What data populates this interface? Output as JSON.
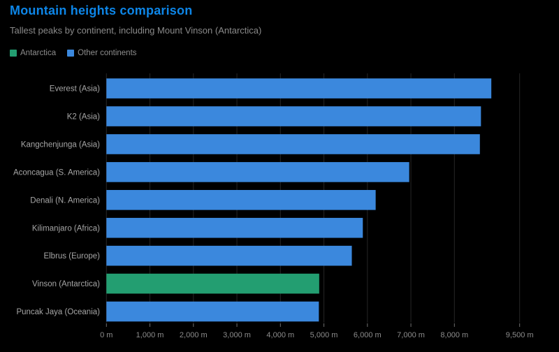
{
  "page": {
    "background": "#000000"
  },
  "header": {
    "title": "Mountain heights comparison",
    "title_color": "#0d86e8",
    "subtitle": "Tallest peaks by continent, including Mount Vinson (Antarctica)",
    "subtitle_color": "#8a8a8a"
  },
  "legend": {
    "items": [
      {
        "label": "Antarctica",
        "color": "#239e71"
      },
      {
        "label": "Other continents",
        "color": "#3b88dd"
      }
    ],
    "label_color": "#8d8d8d"
  },
  "chart_data": {
    "type": "bar",
    "orientation": "horizontal",
    "title": "Mountain heights comparison",
    "subtitle": "Tallest peaks by continent, including Mount Vinson (Antarctica)",
    "categories": [
      "Everest (Asia)",
      "K2 (Asia)",
      "Kangchenjunga (Asia)",
      "Aconcagua (S. America)",
      "Denali (N. America)",
      "Kilimanjaro (Africa)",
      "Elbrus (Europe)",
      "Vinson (Antarctica)",
      "Puncak Jaya (Oceania)"
    ],
    "series": [
      {
        "name": "Height",
        "values": [
          8849,
          8611,
          8586,
          6961,
          6190,
          5895,
          5642,
          4892,
          4884
        ]
      }
    ],
    "groups": [
      "Other continents",
      "Other continents",
      "Other continents",
      "Other continents",
      "Other continents",
      "Other continents",
      "Other continents",
      "Antarctica",
      "Other continents"
    ],
    "colors": {
      "Antarctica": "#239e71",
      "Other continents": "#3b88dd"
    },
    "unit": "m",
    "xlim": [
      0,
      9900
    ],
    "grid": true,
    "legend_position": "top",
    "x_ticks": [
      {
        "value": 0,
        "label": "0 m"
      },
      {
        "value": 1000,
        "label": "1,000 m"
      },
      {
        "value": 2000,
        "label": "2,000 m"
      },
      {
        "value": 3000,
        "label": "3,000 m"
      },
      {
        "value": 4000,
        "label": "4,000 m"
      },
      {
        "value": 5000,
        "label": "5,000 m"
      },
      {
        "value": 6000,
        "label": "6,000 m"
      },
      {
        "value": 7000,
        "label": "7,000 m"
      },
      {
        "value": 8000,
        "label": "8,000 m"
      },
      {
        "value": 9500,
        "label": "9,500 m"
      }
    ],
    "style": {
      "grid_color": "#262626",
      "axis_tick_color": "#6f6f6f",
      "category_label_color": "#a6a6a6",
      "tick_label_color": "#8d8d8d"
    }
  }
}
